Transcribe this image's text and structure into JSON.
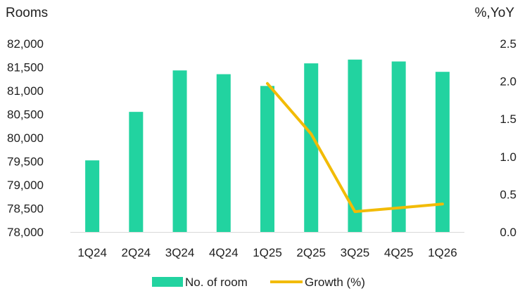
{
  "chart_data": {
    "type": "bar",
    "categories": [
      "1Q24",
      "2Q24",
      "3Q24",
      "4Q24",
      "1Q25",
      "2Q25",
      "3Q25",
      "4Q25",
      "1Q26"
    ],
    "series": [
      {
        "name": "No. of room",
        "type": "bar",
        "axis": "left",
        "color": "#22D3A0",
        "values": [
          79520,
          80550,
          81430,
          81350,
          81100,
          81580,
          81660,
          81620,
          81400
        ]
      },
      {
        "name": "Growth (%)",
        "type": "line",
        "axis": "right",
        "color": "#F2BB05",
        "values": [
          null,
          null,
          null,
          null,
          1.97,
          1.3,
          0.27,
          0.32,
          0.37
        ]
      }
    ],
    "ylabel_left": "Rooms",
    "ylabel_right": "%,YoY",
    "ylim_left": [
      78000,
      82000
    ],
    "yticks_left": [
      "82,000",
      "81,500",
      "81,000",
      "80,500",
      "80,000",
      "79,500",
      "79,000",
      "78,500",
      "78,000"
    ],
    "ylim_right": [
      0,
      2.5
    ],
    "yticks_right": [
      "2.5",
      "2.0",
      "1.5",
      "1.0",
      "0.5",
      "0.0"
    ],
    "grid": false,
    "legend_placement": "bottom-center"
  }
}
